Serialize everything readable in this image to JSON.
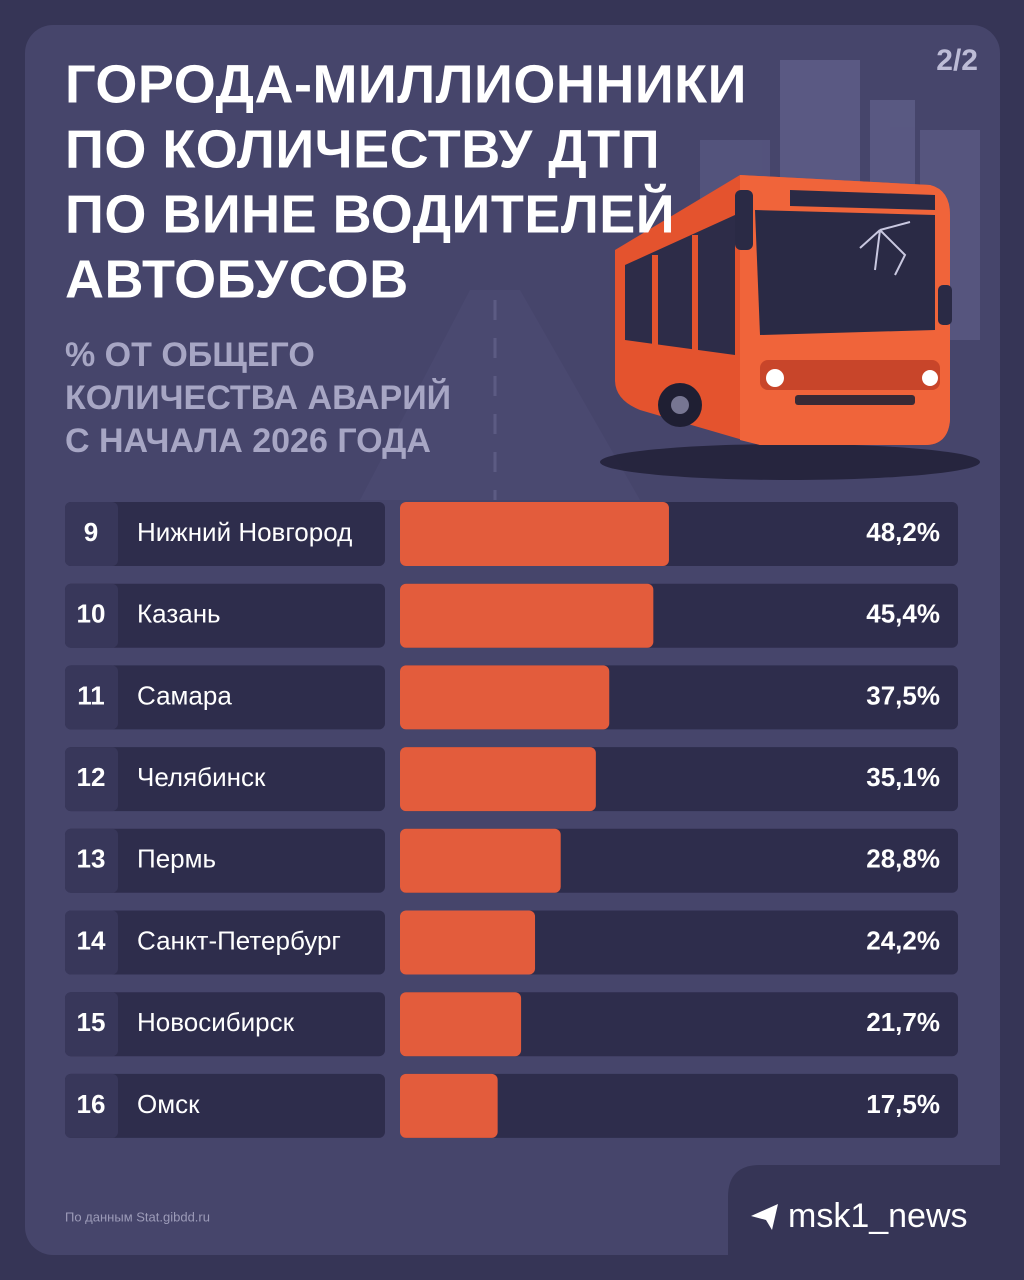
{
  "chart_data": {
    "type": "bar",
    "orientation": "horizontal",
    "page_label": "2/2",
    "title": [
      "ГОРОДА-МИЛЛИОННИКИ",
      "ПО КОЛИЧЕСТВУ ДТП",
      "ПО ВИНЕ ВОДИТЕЛЕЙ",
      "АВТОБУСОВ"
    ],
    "subtitle": [
      "% ОТ ОБЩЕГО",
      "КОЛИЧЕСТВА АВАРИЙ",
      "С НАЧАЛА 2026 ГОДА"
    ],
    "ranks": [
      9,
      10,
      11,
      12,
      13,
      14,
      15,
      16
    ],
    "categories": [
      "Нижний Новгород",
      "Казань",
      "Самара",
      "Челябинск",
      "Пермь",
      "Санкт-Петербург",
      "Новосибирск",
      "Омск"
    ],
    "values": [
      48.2,
      45.4,
      37.5,
      35.1,
      28.8,
      24.2,
      21.7,
      17.5
    ],
    "value_labels": [
      "48,2%",
      "45,4%",
      "37,5%",
      "35,1%",
      "28,8%",
      "24,2%",
      "21,7%",
      "17,5%"
    ],
    "color": "#e35c3c",
    "xlim": [
      0,
      100
    ],
    "source": "По данным Stat.gibdd.ru",
    "brand": "msk1_news"
  }
}
